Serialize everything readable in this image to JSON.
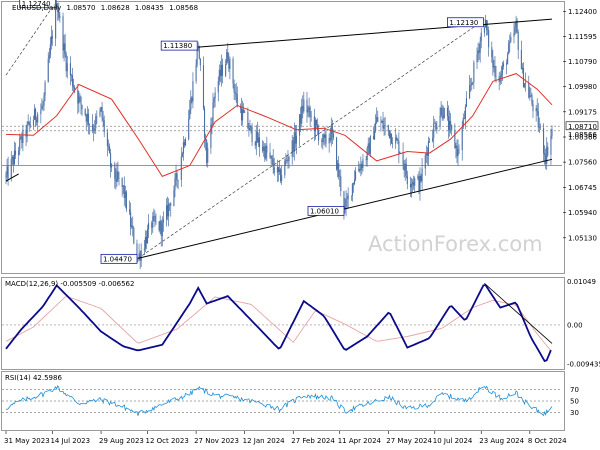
{
  "chart_data": [
    {
      "type": "candlestick",
      "title": "EURUSD,Daily",
      "ohlc": [
        "1.08570",
        "1.08628",
        "1.08435",
        "1.08568"
      ],
      "ylim": [
        1.04,
        1.127
      ],
      "yticks": [
        "1.12400",
        "1.11595",
        "1.10790",
        "1.09980",
        "1.09175",
        "1.08366",
        "1.07560",
        "1.06745",
        "1.05940",
        "1.05130"
      ],
      "last_price": "1.08710",
      "level_line": "1.08566",
      "support_level": 1.0745,
      "annotations": [
        {
          "text": "1.12740",
          "date": "2023-07-18",
          "price": 1.1274
        },
        {
          "text": "1.11380",
          "date": "2023-11-29",
          "price": 1.1138
        },
        {
          "text": "1.12130",
          "date": "2024-08-26",
          "price": 1.1213
        },
        {
          "text": "1.06010",
          "date": "2024-04-16",
          "price": 1.0601
        },
        {
          "text": "1.04470",
          "date": "2023-10-03",
          "price": 1.0447
        }
      ],
      "series": [
        {
          "kind": "close",
          "dates": [
            "2023-05-31",
            "2023-06-14",
            "2023-06-26",
            "2023-07-05",
            "2023-07-18",
            "2023-07-27",
            "2023-08-08",
            "2023-08-21",
            "2023-08-29",
            "2023-09-08",
            "2023-09-19",
            "2023-10-03",
            "2023-10-16",
            "2023-10-26",
            "2023-11-09",
            "2023-11-21",
            "2023-11-29",
            "2023-12-07",
            "2023-12-15",
            "2023-12-27",
            "2024-01-05",
            "2024-01-18",
            "2024-02-01",
            "2024-02-14",
            "2024-03-01",
            "2024-03-08",
            "2024-03-19",
            "2024-03-27",
            "2024-04-03",
            "2024-04-16",
            "2024-04-26",
            "2024-05-07",
            "2024-05-16",
            "2024-05-28",
            "2024-06-07",
            "2024-06-14",
            "2024-06-26",
            "2024-07-05",
            "2024-07-17",
            "2024-08-01",
            "2024-08-08",
            "2024-08-26",
            "2024-09-03",
            "2024-09-10",
            "2024-09-25",
            "2024-10-01",
            "2024-10-09",
            "2024-10-15",
            "2024-10-23",
            "2024-10-29"
          ],
          "values": [
            1.0707,
            1.0821,
            1.0898,
            1.0935,
            1.1274,
            1.1075,
            1.0955,
            1.0865,
            1.0918,
            1.0725,
            1.0668,
            1.0447,
            1.056,
            1.0545,
            1.0705,
            1.0925,
            1.1138,
            1.0765,
            1.099,
            1.11,
            1.0945,
            1.085,
            1.079,
            1.0705,
            1.0842,
            1.0945,
            1.0868,
            1.0815,
            1.0852,
            1.0601,
            1.0725,
            1.078,
            1.089,
            1.0855,
            1.08,
            1.0705,
            1.0688,
            1.0835,
            1.093,
            1.0785,
            1.092,
            1.1213,
            1.1065,
            1.1025,
            1.119,
            1.1035,
            1.0955,
            1.0895,
            1.0775,
            1.0857
          ]
        },
        {
          "kind": "sma",
          "name": "",
          "dates": [
            "2023-05-31",
            "2023-06-26",
            "2023-07-18",
            "2023-08-08",
            "2023-09-08",
            "2023-10-03",
            "2023-10-26",
            "2023-11-21",
            "2023-12-15",
            "2024-01-05",
            "2024-02-01",
            "2024-03-01",
            "2024-03-27",
            "2024-04-16",
            "2024-05-16",
            "2024-06-14",
            "2024-07-05",
            "2024-07-25",
            "2024-08-15",
            "2024-09-03",
            "2024-09-25",
            "2024-10-15",
            "2024-10-29"
          ],
          "values": [
            1.0845,
            1.0842,
            1.0905,
            1.1005,
            1.0958,
            1.0832,
            1.071,
            1.0745,
            1.0885,
            1.0938,
            1.0902,
            1.086,
            1.0865,
            1.0842,
            1.076,
            1.079,
            1.0785,
            1.083,
            1.0905,
            1.1015,
            1.104,
            1.099,
            1.094
          ]
        }
      ],
      "xticks": [
        "31 May 2023",
        "14 Jul 2023",
        "29 Aug 2023",
        "12 Oct 2023",
        "27 Nov 2023",
        "12 Jan 2024",
        "27 Feb 2024",
        "11 Apr 2024",
        "27 May 2024",
        "10 Jul 2024",
        "23 Aug 2024",
        "8 Oct 2024"
      ]
    },
    {
      "type": "line",
      "title": "MACD(12,26,9) -0.005509 -0.006562",
      "ylim": [
        -0.0107,
        0.0114
      ],
      "yticks": [
        "0.01049",
        "0.00",
        "-0.009435"
      ],
      "zero_line": 0.0,
      "series": [
        {
          "name": "MACD",
          "dates": [
            "2023-05-31",
            "2023-06-14",
            "2023-07-05",
            "2023-07-18",
            "2023-08-08",
            "2023-08-29",
            "2023-09-19",
            "2023-10-03",
            "2023-10-26",
            "2023-11-21",
            "2023-11-29",
            "2023-12-07",
            "2023-12-27",
            "2024-01-18",
            "2024-02-14",
            "2024-03-08",
            "2024-03-27",
            "2024-04-16",
            "2024-05-07",
            "2024-05-28",
            "2024-06-14",
            "2024-07-05",
            "2024-07-25",
            "2024-08-08",
            "2024-08-26",
            "2024-09-10",
            "2024-09-25",
            "2024-10-09",
            "2024-10-23",
            "2024-10-29"
          ],
          "values": [
            -0.0058,
            -0.0012,
            0.0045,
            0.0096,
            0.0042,
            -0.0016,
            -0.0052,
            -0.0062,
            -0.0048,
            0.0052,
            0.009,
            0.0052,
            0.007,
            0.0012,
            -0.006,
            0.0058,
            0.0022,
            -0.0062,
            -0.0028,
            0.0032,
            -0.0055,
            -0.0032,
            0.0048,
            0.001,
            0.0101,
            0.0042,
            0.0055,
            -0.003,
            -0.0092,
            -0.0055
          ]
        },
        {
          "name": "Signal",
          "dates": [
            "2023-05-31",
            "2023-06-26",
            "2023-07-27",
            "2023-08-29",
            "2023-10-03",
            "2023-11-09",
            "2023-12-15",
            "2024-01-18",
            "2024-02-27",
            "2024-03-19",
            "2024-04-16",
            "2024-05-16",
            "2024-06-14",
            "2024-07-17",
            "2024-08-15",
            "2024-09-03",
            "2024-09-25",
            "2024-10-15",
            "2024-10-29"
          ],
          "values": [
            -0.004,
            -0.0005,
            0.007,
            0.004,
            -0.0045,
            -0.001,
            0.0068,
            0.005,
            -0.0042,
            0.0035,
            0.0002,
            -0.004,
            -0.0028,
            -0.0008,
            0.0042,
            0.006,
            0.0048,
            -0.0022,
            -0.0066
          ]
        }
      ]
    },
    {
      "type": "line",
      "title": "RSI(14) 42.5986",
      "ylim": [
        0,
        100
      ],
      "yticks": [
        "70",
        "50",
        "30"
      ],
      "series": [
        {
          "name": "RSI",
          "dates": [
            "2023-05-31",
            "2023-06-14",
            "2023-07-05",
            "2023-07-18",
            "2023-08-08",
            "2023-08-29",
            "2023-09-19",
            "2023-10-03",
            "2023-10-26",
            "2023-11-21",
            "2023-11-29",
            "2023-12-15",
            "2024-01-05",
            "2024-02-01",
            "2024-02-14",
            "2024-03-08",
            "2024-04-03",
            "2024-04-16",
            "2024-05-07",
            "2024-05-28",
            "2024-06-14",
            "2024-07-05",
            "2024-07-17",
            "2024-08-08",
            "2024-08-26",
            "2024-09-10",
            "2024-09-25",
            "2024-10-09",
            "2024-10-23",
            "2024-10-29"
          ],
          "values": [
            38,
            50,
            62,
            74,
            46,
            52,
            40,
            28,
            44,
            62,
            72,
            60,
            55,
            44,
            36,
            60,
            55,
            32,
            45,
            56,
            36,
            44,
            62,
            50,
            76,
            55,
            64,
            38,
            28,
            43
          ]
        }
      ]
    }
  ],
  "watermark": "ActionForex.com",
  "colors": {
    "candle": "#4a6fa5",
    "sma": "#e0302a",
    "macd": "#0a0a8c",
    "signal": "#e6a5a5",
    "rsi": "#1f8fd6",
    "label_border": "#1a1aa8"
  }
}
